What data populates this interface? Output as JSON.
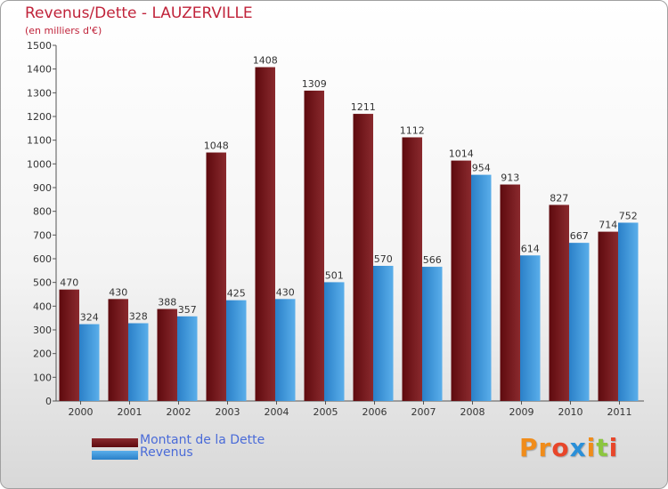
{
  "header": {
    "title": "Revenus/Dette - LAUZERVILLE",
    "subtitle": "(en milliers d'€)"
  },
  "legend": {
    "items": [
      {
        "label": "Montant de la Dette"
      },
      {
        "label": "Revenus"
      }
    ]
  },
  "logo": {
    "text": "Proxiti"
  },
  "colors": {
    "title": "#c0233a",
    "legend_text": "#4a6bd8",
    "debt_dark": "#5e0a0e",
    "debt_light": "#8a2a2e",
    "revenue_dark": "#2a80c8",
    "revenue_light": "#5aaeea",
    "logo": [
      "#f08c1a",
      "#f08c1a",
      "#e8462a",
      "#2a8fd8",
      "#f08c1a",
      "#8cc63f",
      "#e8462a"
    ]
  },
  "chart_data": {
    "type": "bar",
    "title": "Revenus/Dette - LAUZERVILLE",
    "subtitle": "(en milliers d'€)",
    "xlabel": "",
    "ylabel": "",
    "ylim": [
      0,
      1500
    ],
    "yticks": [
      0,
      100,
      200,
      300,
      400,
      500,
      600,
      700,
      800,
      900,
      1000,
      1100,
      1200,
      1300,
      1400,
      1500
    ],
    "grid": false,
    "legend_position": "bottom-left",
    "categories": [
      "2000",
      "2001",
      "2002",
      "2003",
      "2004",
      "2005",
      "2006",
      "2007",
      "2008",
      "2009",
      "2010",
      "2011"
    ],
    "series": [
      {
        "name": "Montant de la Dette",
        "values": [
          470,
          430,
          388,
          1048,
          1408,
          1309,
          1211,
          1112,
          1014,
          913,
          827,
          714
        ]
      },
      {
        "name": "Revenus",
        "values": [
          324,
          328,
          357,
          425,
          430,
          501,
          570,
          566,
          954,
          614,
          667,
          752
        ]
      }
    ]
  }
}
